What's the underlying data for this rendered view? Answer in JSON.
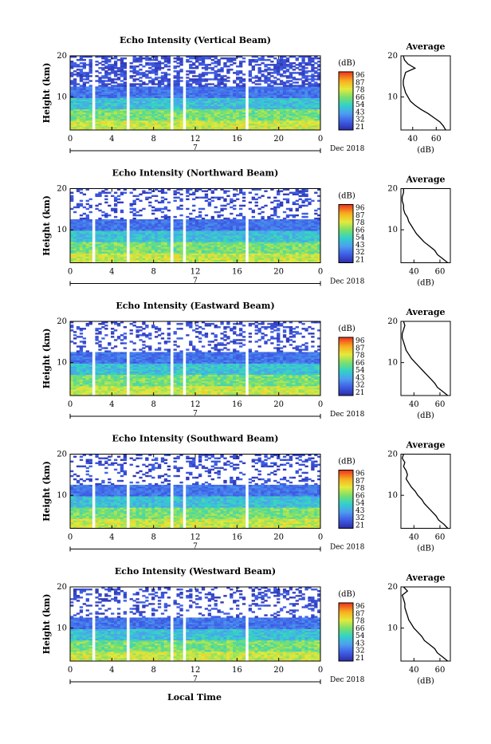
{
  "figure": {
    "bottom_label": "Local Time"
  },
  "colorbar": {
    "unit_label": "(dB)",
    "ticks": [
      21,
      32,
      43,
      54,
      66,
      78,
      87,
      96
    ],
    "colors": [
      "#2d2fa8",
      "#3f5ee7",
      "#4d9ff0",
      "#32d2c9",
      "#7ae06a",
      "#e4ea3c",
      "#f8b020",
      "#ef3f1d"
    ]
  },
  "chart_data": [
    {
      "type": "heatmap",
      "title": "Echo Intensity (Vertical Beam)",
      "ylabel": "Height (km)",
      "xlim": [
        0,
        24
      ],
      "ylim": [
        2,
        20
      ],
      "x_ticks": [
        "0",
        "4",
        "8",
        "12",
        "16",
        "20",
        "0"
      ],
      "y_ticks": [
        "20",
        "10"
      ],
      "date_label": "Dec 2018",
      "date_marker": "7",
      "colorbar_unit": "(dB)",
      "colorbar_ticks": [
        "96",
        "87",
        "78",
        "66",
        "54",
        "43",
        "32",
        "21"
      ],
      "gaps_hours": [
        [
          2.0,
          2.4
        ],
        [
          5.4,
          5.6
        ],
        [
          9.7,
          9.9
        ],
        [
          10.8,
          11.0
        ],
        [
          16.9,
          17.1
        ]
      ],
      "profile": {
        "title": "Average",
        "xlabel": "(dB)",
        "x_ticks": [
          "40",
          "60"
        ],
        "y_ticks": [
          "20",
          "10"
        ],
        "xlim": [
          30,
          72
        ],
        "ylim": [
          2,
          20
        ],
        "heights": [
          2,
          3,
          4,
          5,
          6,
          7,
          8,
          9,
          10,
          11,
          12,
          13,
          14,
          15,
          16,
          17,
          18,
          19,
          20
        ],
        "values": [
          68,
          66,
          63,
          58,
          53,
          47,
          42,
          38,
          36,
          34,
          33,
          32,
          32,
          33,
          34,
          42,
          36,
          33,
          32
        ]
      }
    },
    {
      "type": "heatmap",
      "title": "Echo Intensity (Northward Beam)",
      "ylabel": "Height (km)",
      "xlim": [
        0,
        24
      ],
      "ylim": [
        2,
        20
      ],
      "x_ticks": [
        "0",
        "4",
        "8",
        "12",
        "16",
        "20",
        "0"
      ],
      "y_ticks": [
        "20",
        "10"
      ],
      "date_label": "Dec 2018",
      "date_marker": "7",
      "colorbar_unit": "(dB)",
      "colorbar_ticks": [
        "96",
        "87",
        "78",
        "66",
        "54",
        "43",
        "32",
        "21"
      ],
      "gaps_hours": [
        [
          2.0,
          2.4
        ],
        [
          5.4,
          5.6
        ],
        [
          9.7,
          9.9
        ],
        [
          10.8,
          11.0
        ],
        [
          16.9,
          17.1
        ]
      ],
      "profile": {
        "title": "Average",
        "xlabel": "(dB)",
        "x_ticks": [
          "40",
          "60"
        ],
        "y_ticks": [
          "20",
          "10"
        ],
        "xlim": [
          30,
          68
        ],
        "ylim": [
          2,
          20
        ],
        "heights": [
          2,
          3,
          4,
          5,
          6,
          7,
          8,
          9,
          10,
          11,
          12,
          13,
          14,
          15,
          16,
          17,
          18,
          19,
          20
        ],
        "values": [
          66,
          62,
          58,
          56,
          52,
          48,
          45,
          42,
          40,
          38,
          36,
          35,
          33,
          32,
          32,
          31,
          31,
          32,
          32
        ]
      }
    },
    {
      "type": "heatmap",
      "title": "Echo Intensity (Eastward Beam)",
      "ylabel": "Height (km)",
      "xlim": [
        0,
        24
      ],
      "ylim": [
        2,
        20
      ],
      "x_ticks": [
        "0",
        "4",
        "8",
        "12",
        "16",
        "20",
        "0"
      ],
      "y_ticks": [
        "20",
        "10"
      ],
      "date_label": "Dec 2018",
      "date_marker": "7",
      "colorbar_unit": "(dB)",
      "colorbar_ticks": [
        "96",
        "87",
        "78",
        "66",
        "54",
        "43",
        "32",
        "21"
      ],
      "gaps_hours": [
        [
          2.0,
          2.4
        ],
        [
          5.4,
          5.6
        ],
        [
          9.7,
          9.9
        ],
        [
          10.8,
          11.0
        ],
        [
          16.9,
          17.1
        ]
      ],
      "profile": {
        "title": "Average",
        "xlabel": "(dB)",
        "x_ticks": [
          "40",
          "60"
        ],
        "y_ticks": [
          "20",
          "10"
        ],
        "xlim": [
          30,
          68
        ],
        "ylim": [
          2,
          20
        ],
        "heights": [
          2,
          3,
          4,
          5,
          6,
          7,
          8,
          9,
          10,
          11,
          12,
          13,
          14,
          15,
          16,
          17,
          18,
          19,
          20
        ],
        "values": [
          66,
          62,
          58,
          56,
          53,
          50,
          47,
          44,
          41,
          38,
          36,
          34,
          33,
          32,
          31,
          31,
          32,
          33,
          32
        ]
      }
    },
    {
      "type": "heatmap",
      "title": "Echo Intensity (Southward Beam)",
      "ylabel": "Height (km)",
      "xlim": [
        0,
        24
      ],
      "ylim": [
        2,
        20
      ],
      "x_ticks": [
        "0",
        "4",
        "8",
        "12",
        "16",
        "20",
        "0"
      ],
      "y_ticks": [
        "20",
        "10"
      ],
      "date_label": "Dec 2018",
      "date_marker": "7",
      "colorbar_unit": "(dB)",
      "colorbar_ticks": [
        "96",
        "87",
        "78",
        "66",
        "54",
        "43",
        "32",
        "21"
      ],
      "gaps_hours": [
        [
          2.0,
          2.4
        ],
        [
          5.4,
          5.6
        ],
        [
          9.7,
          9.9
        ],
        [
          10.8,
          11.0
        ],
        [
          16.9,
          17.1
        ]
      ],
      "profile": {
        "title": "Average",
        "xlabel": "(dB)",
        "x_ticks": [
          "40",
          "60"
        ],
        "y_ticks": [
          "20",
          "10"
        ],
        "xlim": [
          30,
          68
        ],
        "ylim": [
          2,
          20
        ],
        "heights": [
          2,
          3,
          4,
          5,
          6,
          7,
          8,
          9,
          10,
          11,
          12,
          13,
          14,
          15,
          16,
          17,
          18,
          19,
          20
        ],
        "values": [
          66,
          63,
          59,
          57,
          54,
          51,
          48,
          46,
          43,
          41,
          38,
          36,
          34,
          35,
          34,
          32,
          33,
          31,
          32
        ]
      }
    },
    {
      "type": "heatmap",
      "title": "Echo Intensity (Westward Beam)",
      "ylabel": "Height (km)",
      "xlim": [
        0,
        24
      ],
      "ylim": [
        2,
        20
      ],
      "x_ticks": [
        "0",
        "4",
        "8",
        "12",
        "16",
        "20",
        "0"
      ],
      "y_ticks": [
        "20",
        "10"
      ],
      "date_label": "Dec 2018",
      "date_marker": "7",
      "colorbar_unit": "(dB)",
      "colorbar_ticks": [
        "96",
        "87",
        "78",
        "66",
        "54",
        "43",
        "32",
        "21"
      ],
      "gaps_hours": [
        [
          2.0,
          2.4
        ],
        [
          5.4,
          5.6
        ],
        [
          9.7,
          9.9
        ],
        [
          10.8,
          11.0
        ],
        [
          16.9,
          17.1
        ]
      ],
      "profile": {
        "title": "Average",
        "xlabel": "(dB)",
        "x_ticks": [
          "40",
          "60"
        ],
        "y_ticks": [
          "20",
          "10"
        ],
        "xlim": [
          30,
          68
        ],
        "ylim": [
          2,
          20
        ],
        "heights": [
          2,
          3,
          4,
          5,
          6,
          7,
          8,
          9,
          10,
          11,
          12,
          13,
          14,
          15,
          16,
          17,
          18,
          19,
          20
        ],
        "values": [
          66,
          62,
          58,
          56,
          52,
          48,
          46,
          43,
          40,
          38,
          36,
          35,
          34,
          33,
          33,
          32,
          31,
          35,
          32
        ]
      }
    }
  ]
}
